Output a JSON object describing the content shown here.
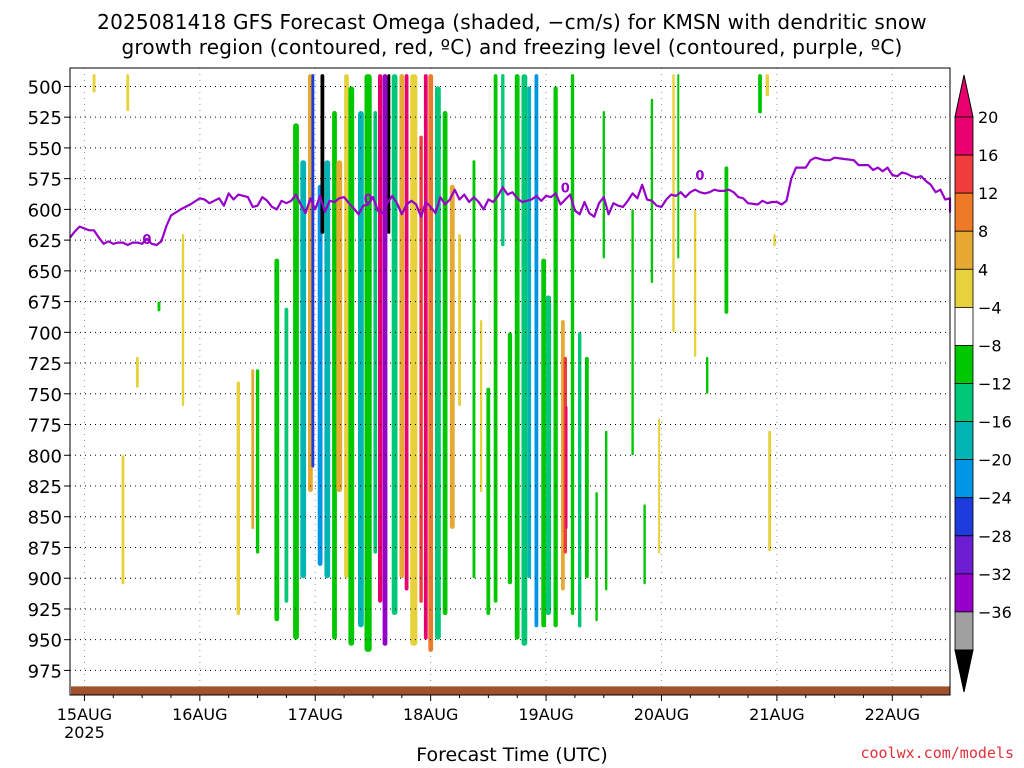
{
  "title_line1": "2025081418 GFS Forecast Omega (shaded, −cm/s) for KMSN with dendritic snow",
  "title_line2": "growth region (contoured, red, ºC) and freezing level (contoured, purple, ºC)",
  "credit": "coolwx.com/models",
  "chart_data": {
    "type": "heatmap",
    "title": "2025081418 GFS Forecast Omega (shaded, −cm/s) for KMSN with dendritic snow growth region (contoured, red, ºC) and freezing level (contoured, purple, ºC)",
    "xlabel": "Forecast Time (UTC)",
    "ylabel": "",
    "x_ticks": [
      "15AUG",
      "16AUG",
      "17AUG",
      "18AUG",
      "19AUG",
      "20AUG",
      "21AUG",
      "22AUG"
    ],
    "x_tick_year": "2025",
    "y_ticks": [
      500,
      525,
      550,
      575,
      600,
      625,
      650,
      675,
      700,
      725,
      750,
      775,
      800,
      825,
      850,
      875,
      900,
      925,
      950,
      975
    ],
    "ylim_hPa": [
      485,
      995
    ],
    "xlim_hours": [
      -3,
      180
    ],
    "grid": true,
    "colorbar": {
      "labels": [
        "20",
        "16",
        "12",
        "8",
        "4",
        "−4",
        "−8",
        "−12",
        "−16",
        "−20",
        "−24",
        "−28",
        "−32",
        "−36"
      ],
      "colors": [
        "#e8006e",
        "#f03c3c",
        "#ee7a28",
        "#e6aa32",
        "#e8d23c",
        "#ffffff",
        "#00c800",
        "#00c878",
        "#00b4b4",
        "#0096e6",
        "#1e3cdc",
        "#6e1ed2",
        "#9600c8",
        "#a0a0a0"
      ],
      "top_arrow_color": "#e8006e",
      "bottom_arrow_color": "#000000"
    },
    "omega_bands": [
      {
        "t": 2,
        "w": 0.6,
        "top": 490,
        "bot": 505,
        "c": "#e8d23c"
      },
      {
        "t": 9,
        "w": 0.6,
        "top": 490,
        "bot": 520,
        "c": "#e8d23c"
      },
      {
        "t": 8,
        "w": 0.6,
        "top": 800,
        "bot": 905,
        "c": "#e8d23c"
      },
      {
        "t": 11,
        "w": 0.6,
        "top": 720,
        "bot": 745,
        "c": "#e8d23c"
      },
      {
        "t": 15.5,
        "w": 0.6,
        "top": 675,
        "bot": 683,
        "c": "#00c800"
      },
      {
        "t": 20.5,
        "w": 0.5,
        "top": 620,
        "bot": 760,
        "c": "#e8d23c"
      },
      {
        "t": 32,
        "w": 0.7,
        "top": 740,
        "bot": 930,
        "c": "#e8d23c"
      },
      {
        "t": 35,
        "w": 0.6,
        "top": 730,
        "bot": 860,
        "c": "#e6aa32"
      },
      {
        "t": 36,
        "w": 0.7,
        "top": 730,
        "bot": 880,
        "c": "#00c800"
      },
      {
        "t": 40,
        "w": 1.0,
        "top": 640,
        "bot": 935,
        "c": "#00c800"
      },
      {
        "t": 42,
        "w": 0.8,
        "top": 680,
        "bot": 920,
        "c": "#00c878"
      },
      {
        "t": 44,
        "w": 1.2,
        "top": 530,
        "bot": 950,
        "c": "#00c800"
      },
      {
        "t": 45.5,
        "w": 1.2,
        "top": 560,
        "bot": 900,
        "c": "#00b4b4"
      },
      {
        "t": 47,
        "w": 1.0,
        "top": 490,
        "bot": 830,
        "c": "#e6aa32"
      },
      {
        "t": 47.5,
        "w": 0.6,
        "top": 490,
        "bot": 810,
        "c": "#1e3cdc"
      },
      {
        "t": 49,
        "w": 1.0,
        "top": 580,
        "bot": 890,
        "c": "#0096e6"
      },
      {
        "t": 49.5,
        "w": 0.8,
        "top": 490,
        "bot": 620,
        "c": "#000000"
      },
      {
        "t": 50.5,
        "w": 1.2,
        "top": 560,
        "bot": 900,
        "c": "#00b4b4"
      },
      {
        "t": 52,
        "w": 1.0,
        "top": 520,
        "bot": 950,
        "c": "#00c800"
      },
      {
        "t": 53,
        "w": 1.2,
        "top": 560,
        "bot": 830,
        "c": "#e6aa32"
      },
      {
        "t": 54.5,
        "w": 1.0,
        "top": 490,
        "bot": 900,
        "c": "#e8d23c"
      },
      {
        "t": 55.5,
        "w": 1.2,
        "top": 500,
        "bot": 955,
        "c": "#00c800"
      },
      {
        "t": 57.5,
        "w": 1.2,
        "top": 520,
        "bot": 940,
        "c": "#00b4b4"
      },
      {
        "t": 59,
        "w": 1.5,
        "top": 490,
        "bot": 960,
        "c": "#00c800"
      },
      {
        "t": 60.5,
        "w": 0.8,
        "top": 520,
        "bot": 880,
        "c": "#00c878"
      },
      {
        "t": 61.5,
        "w": 0.9,
        "top": 490,
        "bot": 920,
        "c": "#e8006e"
      },
      {
        "t": 62.5,
        "w": 1.0,
        "top": 490,
        "bot": 955,
        "c": "#9600c8"
      },
      {
        "t": 63.3,
        "w": 0.6,
        "top": 490,
        "bot": 620,
        "c": "#000000"
      },
      {
        "t": 64.5,
        "w": 1.2,
        "top": 490,
        "bot": 930,
        "c": "#00c878"
      },
      {
        "t": 66.0,
        "w": 1.0,
        "top": 490,
        "bot": 900,
        "c": "#e6aa32"
      },
      {
        "t": 67.0,
        "w": 0.8,
        "top": 490,
        "bot": 910,
        "c": "#e8006e"
      },
      {
        "t": 68.5,
        "w": 1.5,
        "top": 490,
        "bot": 955,
        "c": "#e8d23c"
      },
      {
        "t": 70.0,
        "w": 0.7,
        "top": 540,
        "bot": 920,
        "c": "#f03c3c"
      },
      {
        "t": 71.0,
        "w": 0.8,
        "top": 490,
        "bot": 950,
        "c": "#e8006e"
      },
      {
        "t": 72.0,
        "w": 1.0,
        "top": 490,
        "bot": 960,
        "c": "#ee7a28"
      },
      {
        "t": 73.5,
        "w": 1.2,
        "top": 500,
        "bot": 950,
        "c": "#00c878"
      },
      {
        "t": 75.0,
        "w": 1.0,
        "top": 520,
        "bot": 930,
        "c": "#00c800"
      },
      {
        "t": 76.5,
        "w": 1.0,
        "top": 580,
        "bot": 860,
        "c": "#e6aa32"
      },
      {
        "t": 78.0,
        "w": 0.6,
        "top": 620,
        "bot": 760,
        "c": "#e8d23c"
      },
      {
        "t": 81.0,
        "w": 0.6,
        "top": 560,
        "bot": 900,
        "c": "#00c800"
      },
      {
        "t": 82.5,
        "w": 0.5,
        "top": 690,
        "bot": 830,
        "c": "#e8d23c"
      },
      {
        "t": 84.0,
        "w": 0.8,
        "top": 745,
        "bot": 930,
        "c": "#00c800"
      },
      {
        "t": 85.5,
        "w": 0.8,
        "top": 490,
        "bot": 920,
        "c": "#00c800"
      },
      {
        "t": 87.0,
        "w": 0.7,
        "top": 490,
        "bot": 630,
        "c": "#00c878"
      },
      {
        "t": 88.5,
        "w": 0.9,
        "top": 700,
        "bot": 905,
        "c": "#00c800"
      },
      {
        "t": 90.0,
        "w": 1.0,
        "top": 490,
        "bot": 950,
        "c": "#00c800"
      },
      {
        "t": 91.5,
        "w": 1.2,
        "top": 490,
        "bot": 955,
        "c": "#00c878"
      },
      {
        "t": 92.5,
        "w": 0.8,
        "top": 500,
        "bot": 900,
        "c": "#00b4b4"
      },
      {
        "t": 94.0,
        "w": 0.8,
        "top": 490,
        "bot": 940,
        "c": "#0096e6"
      },
      {
        "t": 95.5,
        "w": 1.0,
        "top": 640,
        "bot": 940,
        "c": "#00c800"
      },
      {
        "t": 96.5,
        "w": 1.1,
        "top": 670,
        "bot": 930,
        "c": "#00c878"
      },
      {
        "t": 98.0,
        "w": 0.9,
        "top": 500,
        "bot": 940,
        "c": "#00c800"
      },
      {
        "t": 99.5,
        "w": 0.8,
        "top": 690,
        "bot": 910,
        "c": "#e6aa32"
      },
      {
        "t": 100.0,
        "w": 0.7,
        "top": 720,
        "bot": 880,
        "c": "#f03c3c"
      },
      {
        "t": 100.2,
        "w": 0.3,
        "top": 760,
        "bot": 860,
        "c": "#e8006e"
      },
      {
        "t": 101.5,
        "w": 0.7,
        "top": 490,
        "bot": 930,
        "c": "#00c800"
      },
      {
        "t": 103.0,
        "w": 0.7,
        "top": 700,
        "bot": 940,
        "c": "#00c878"
      },
      {
        "t": 104.5,
        "w": 0.8,
        "top": 720,
        "bot": 900,
        "c": "#00c800"
      },
      {
        "t": 106.5,
        "w": 0.5,
        "top": 830,
        "bot": 935,
        "c": "#00c800"
      },
      {
        "t": 108.0,
        "w": 0.5,
        "top": 520,
        "bot": 640,
        "c": "#00c800"
      },
      {
        "t": 108.5,
        "w": 0.5,
        "top": 780,
        "bot": 910,
        "c": "#00c800"
      },
      {
        "t": 114.0,
        "w": 0.5,
        "top": 600,
        "bot": 800,
        "c": "#00c800"
      },
      {
        "t": 116.5,
        "w": 0.5,
        "top": 840,
        "bot": 905,
        "c": "#00c800"
      },
      {
        "t": 118.0,
        "w": 0.5,
        "top": 510,
        "bot": 660,
        "c": "#00c800"
      },
      {
        "t": 119.5,
        "w": 0.4,
        "top": 770,
        "bot": 880,
        "c": "#e8d23c"
      },
      {
        "t": 122.5,
        "w": 0.5,
        "top": 490,
        "bot": 700,
        "c": "#e8d23c"
      },
      {
        "t": 123.5,
        "w": 0.4,
        "top": 490,
        "bot": 640,
        "c": "#00c800"
      },
      {
        "t": 127.0,
        "w": 0.5,
        "top": 600,
        "bot": 720,
        "c": "#e8d23c"
      },
      {
        "t": 129.5,
        "w": 0.5,
        "top": 720,
        "bot": 750,
        "c": "#00c800"
      },
      {
        "t": 133.5,
        "w": 0.8,
        "top": 565,
        "bot": 685,
        "c": "#00c800"
      },
      {
        "t": 140.5,
        "w": 0.8,
        "top": 490,
        "bot": 522,
        "c": "#00c800"
      },
      {
        "t": 142.0,
        "w": 0.7,
        "top": 490,
        "bot": 508,
        "c": "#e8d23c"
      },
      {
        "t": 142.5,
        "w": 0.6,
        "top": 780,
        "bot": 878,
        "c": "#e8d23c"
      },
      {
        "t": 143.5,
        "w": 0.5,
        "top": 620,
        "bot": 630,
        "c": "#e8d23c"
      }
    ],
    "freezing_level": {
      "color": "#9600c8",
      "label": "0",
      "points": [
        [
          -3,
          623
        ],
        [
          -2,
          618
        ],
        [
          -1,
          614
        ],
        [
          1,
          617
        ],
        [
          2,
          617
        ],
        [
          3,
          623
        ],
        [
          4,
          628
        ],
        [
          5,
          626
        ],
        [
          6,
          628
        ],
        [
          7,
          627
        ],
        [
          8,
          627
        ],
        [
          9,
          629
        ],
        [
          10,
          627
        ],
        [
          11,
          627
        ],
        [
          12,
          628
        ],
        [
          13,
          624
        ],
        [
          14,
          628
        ],
        [
          15,
          629
        ],
        [
          16,
          626
        ],
        [
          17,
          614
        ],
        [
          18,
          605
        ],
        [
          20,
          600
        ],
        [
          22,
          596
        ],
        [
          24,
          591
        ],
        [
          25,
          592
        ],
        [
          26,
          595
        ],
        [
          28,
          591
        ],
        [
          29,
          597
        ],
        [
          30,
          587
        ],
        [
          31,
          592
        ],
        [
          32,
          588
        ],
        [
          34,
          590
        ],
        [
          35,
          598
        ],
        [
          36,
          597
        ],
        [
          37,
          590
        ],
        [
          38,
          593
        ],
        [
          39,
          598
        ],
        [
          40,
          600
        ],
        [
          41,
          593
        ],
        [
          42,
          595
        ],
        [
          43,
          593
        ],
        [
          44,
          588
        ],
        [
          45,
          596
        ],
        [
          46,
          603
        ],
        [
          47,
          591
        ],
        [
          48,
          600
        ],
        [
          49,
          589
        ],
        [
          50,
          602
        ],
        [
          51,
          593
        ],
        [
          52,
          594
        ],
        [
          53,
          591
        ],
        [
          54,
          590
        ],
        [
          55,
          595
        ],
        [
          56,
          599
        ],
        [
          57,
          604
        ],
        [
          58,
          597
        ],
        [
          59,
          596
        ],
        [
          60,
          590
        ],
        [
          61,
          601
        ],
        [
          62,
          603
        ],
        [
          63,
          595
        ],
        [
          64,
          589
        ],
        [
          65,
          595
        ],
        [
          66,
          604
        ],
        [
          67,
          596
        ],
        [
          68,
          593
        ],
        [
          69,
          596
        ],
        [
          70,
          606
        ],
        [
          71,
          594
        ],
        [
          72,
          598
        ],
        [
          73,
          603
        ],
        [
          74,
          590
        ],
        [
          75,
          596
        ],
        [
          76,
          592
        ],
        [
          77,
          584
        ],
        [
          78,
          592
        ],
        [
          79,
          588
        ],
        [
          80,
          594
        ],
        [
          81,
          590
        ],
        [
          82,
          594
        ],
        [
          83,
          600
        ],
        [
          84,
          592
        ],
        [
          85,
          594
        ],
        [
          86,
          589
        ],
        [
          87,
          582
        ],
        [
          88,
          588
        ],
        [
          89,
          586
        ],
        [
          90,
          591
        ],
        [
          91,
          594
        ],
        [
          92,
          593
        ],
        [
          93,
          592
        ],
        [
          94,
          589
        ],
        [
          95,
          593
        ],
        [
          96,
          589
        ],
        [
          97,
          590
        ],
        [
          98,
          587
        ],
        [
          99,
          596
        ],
        [
          100,
          592
        ],
        [
          101,
          588
        ],
        [
          102,
          601
        ],
        [
          103,
          604
        ],
        [
          104,
          594
        ],
        [
          105,
          603
        ],
        [
          106,
          606
        ],
        [
          107,
          595
        ],
        [
          108,
          590
        ],
        [
          109,
          604
        ],
        [
          110,
          595
        ],
        [
          111,
          597
        ],
        [
          112,
          598
        ],
        [
          113,
          593
        ],
        [
          114,
          587
        ],
        [
          115,
          591
        ],
        [
          116,
          580
        ],
        [
          117,
          592
        ],
        [
          118,
          593
        ],
        [
          119,
          597
        ],
        [
          120,
          598
        ],
        [
          121,
          592
        ],
        [
          122,
          588
        ],
        [
          123,
          589
        ],
        [
          124,
          586
        ],
        [
          125,
          590
        ],
        [
          126,
          586
        ],
        [
          127,
          584
        ],
        [
          128,
          586
        ],
        [
          129,
          587
        ],
        [
          130,
          586
        ],
        [
          131,
          584
        ],
        [
          132,
          585
        ],
        [
          133,
          585
        ],
        [
          134,
          584
        ],
        [
          135,
          586
        ],
        [
          136,
          590
        ],
        [
          137,
          591
        ],
        [
          138,
          595
        ],
        [
          140,
          596
        ],
        [
          141,
          593
        ],
        [
          142,
          595
        ],
        [
          143,
          594
        ],
        [
          144,
          594
        ],
        [
          145,
          596
        ],
        [
          146,
          593
        ],
        [
          147,
          575
        ],
        [
          148,
          566
        ],
        [
          150,
          566
        ],
        [
          151,
          560
        ],
        [
          152,
          558
        ],
        [
          154,
          560
        ],
        [
          155,
          560
        ],
        [
          156,
          558
        ],
        [
          158,
          559
        ],
        [
          160,
          560
        ],
        [
          161,
          564
        ],
        [
          163,
          564
        ],
        [
          164,
          568
        ],
        [
          165,
          566
        ],
        [
          166,
          569
        ],
        [
          167,
          566
        ],
        [
          168,
          572
        ],
        [
          169,
          573
        ],
        [
          170,
          570
        ],
        [
          171,
          571
        ],
        [
          172,
          573
        ],
        [
          173,
          574
        ],
        [
          174,
          573
        ],
        [
          175,
          577
        ],
        [
          176,
          580
        ],
        [
          177,
          586
        ],
        [
          178,
          584
        ],
        [
          179,
          592
        ],
        [
          180,
          591
        ],
        [
          181,
          592
        ],
        [
          182,
          598
        ],
        [
          183,
          599
        ],
        [
          184,
          596
        ],
        [
          185,
          602
        ],
        [
          186,
          602
        ],
        [
          187,
          601
        ]
      ],
      "labels_at": [
        [
          13,
          624
        ],
        [
          59,
          591
        ],
        [
          100,
          582
        ],
        [
          128,
          572
        ]
      ]
    },
    "ground": {
      "color": "#a0522d",
      "top_hPa": 988
    }
  }
}
